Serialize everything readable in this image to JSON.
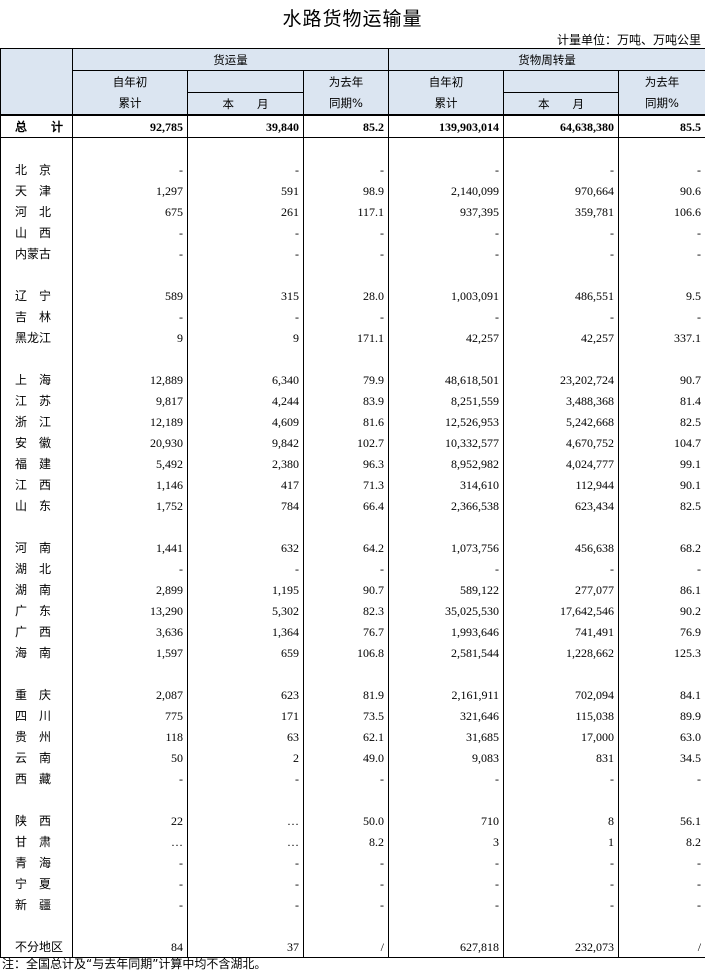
{
  "header": {
    "title": "水路货物运输量",
    "unit": "计量单位：万吨、万吨公里"
  },
  "column_groups": [
    {
      "name": "货运量",
      "ytd_top": "自年初",
      "ytd_bottom": "累计",
      "month": "本　　月",
      "yoy_top": "为去年",
      "yoy_bottom": "同期%"
    },
    {
      "name": "货物周转量",
      "ytd_top": "自年初",
      "ytd_bottom": "累计",
      "month": "本　　月",
      "yoy_top": "为去年",
      "yoy_bottom": "同期%"
    }
  ],
  "table": {
    "total": [
      "总　　计",
      "92,785",
      "39,840",
      "85.2",
      "139,903,014",
      "64,638,380",
      "85.5"
    ],
    "groups": [
      [
        [
          "北　京",
          "-",
          "-",
          "-",
          "-",
          "-",
          "-"
        ],
        [
          "天　津",
          "1,297",
          "591",
          "98.9",
          "2,140,099",
          "970,664",
          "90.6"
        ],
        [
          "河　北",
          "675",
          "261",
          "117.1",
          "937,395",
          "359,781",
          "106.6"
        ],
        [
          "山　西",
          "-",
          "-",
          "-",
          "-",
          "-",
          "-"
        ],
        [
          "内蒙古",
          "-",
          "-",
          "-",
          "-",
          "-",
          "-"
        ]
      ],
      [
        [
          "辽　宁",
          "589",
          "315",
          "28.0",
          "1,003,091",
          "486,551",
          "9.5"
        ],
        [
          "吉　林",
          "-",
          "-",
          "-",
          "-",
          "-",
          "-"
        ],
        [
          "黑龙江",
          "9",
          "9",
          "171.1",
          "42,257",
          "42,257",
          "337.1"
        ]
      ],
      [
        [
          "上　海",
          "12,889",
          "6,340",
          "79.9",
          "48,618,501",
          "23,202,724",
          "90.7"
        ],
        [
          "江　苏",
          "9,817",
          "4,244",
          "83.9",
          "8,251,559",
          "3,488,368",
          "81.4"
        ],
        [
          "浙　江",
          "12,189",
          "4,609",
          "81.6",
          "12,526,953",
          "5,242,668",
          "82.5"
        ],
        [
          "安　徽",
          "20,930",
          "9,842",
          "102.7",
          "10,332,577",
          "4,670,752",
          "104.7"
        ],
        [
          "福　建",
          "5,492",
          "2,380",
          "96.3",
          "8,952,982",
          "4,024,777",
          "99.1"
        ],
        [
          "江　西",
          "1,146",
          "417",
          "71.3",
          "314,610",
          "112,944",
          "90.1"
        ],
        [
          "山　东",
          "1,752",
          "784",
          "66.4",
          "2,366,538",
          "623,434",
          "82.5"
        ]
      ],
      [
        [
          "河　南",
          "1,441",
          "632",
          "64.2",
          "1,073,756",
          "456,638",
          "68.2"
        ],
        [
          "湖　北",
          "-",
          "-",
          "-",
          "-",
          "-",
          "-"
        ],
        [
          "湖　南",
          "2,899",
          "1,195",
          "90.7",
          "589,122",
          "277,077",
          "86.1"
        ],
        [
          "广　东",
          "13,290",
          "5,302",
          "82.3",
          "35,025,530",
          "17,642,546",
          "90.2"
        ],
        [
          "广　西",
          "3,636",
          "1,364",
          "76.7",
          "1,993,646",
          "741,491",
          "76.9"
        ],
        [
          "海　南",
          "1,597",
          "659",
          "106.8",
          "2,581,544",
          "1,228,662",
          "125.3"
        ]
      ],
      [
        [
          "重　庆",
          "2,087",
          "623",
          "81.9",
          "2,161,911",
          "702,094",
          "84.1"
        ],
        [
          "四　川",
          "775",
          "171",
          "73.5",
          "321,646",
          "115,038",
          "89.9"
        ],
        [
          "贵　州",
          "118",
          "63",
          "62.1",
          "31,685",
          "17,000",
          "63.0"
        ],
        [
          "云　南",
          "50",
          "2",
          "49.0",
          "9,083",
          "831",
          "34.5"
        ],
        [
          "西　藏",
          "-",
          "-",
          "-",
          "-",
          "-",
          "-"
        ]
      ],
      [
        [
          "陕　西",
          "22",
          "…",
          "50.0",
          "710",
          "8",
          "56.1"
        ],
        [
          "甘　肃",
          "…",
          "…",
          "8.2",
          "3",
          "1",
          "8.2"
        ],
        [
          "青　海",
          "-",
          "-",
          "-",
          "-",
          "-",
          "-"
        ],
        [
          "宁　夏",
          "-",
          "-",
          "-",
          "-",
          "-",
          "-"
        ],
        [
          "新　疆",
          "-",
          "-",
          "-",
          "-",
          "-",
          "-"
        ]
      ],
      [
        [
          "不分地区",
          "84",
          "37",
          "/",
          "627,818",
          "232,073",
          "/"
        ]
      ]
    ]
  },
  "note": "注：全国总计及“与去年同期”计算中均不含湖北。"
}
